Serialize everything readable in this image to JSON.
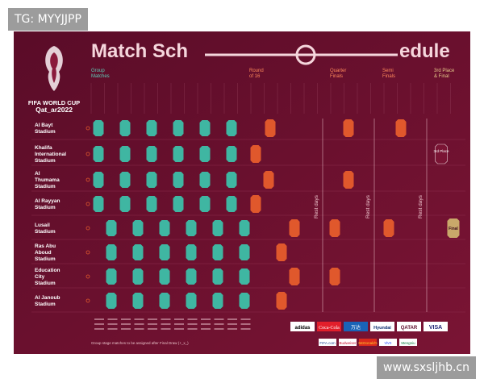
{
  "watermark_top": "TG: MYYJJPP",
  "watermark_bottom": "www.sxsljhb.cn",
  "logo": {
    "line1": "FIFA WORLD CUP",
    "line2": "Qat_ar2022"
  },
  "title_left": "Match Sch",
  "title_right": "edule",
  "stages": {
    "group": "Group Matches",
    "r16": "Round of 16",
    "qf": "Quarter Finals",
    "sf": "Semi Finals",
    "final": "3rd Place & Final"
  },
  "stadiums": [
    "Al Bayt Stadium",
    "Khalifa International Stadium",
    "Al Thumama Stadium",
    "Al Rayyan Stadium",
    "Lusail Stadium",
    "Ras Abu Aboud Stadium",
    "Education City Stadium",
    "Al Janoub Stadium"
  ],
  "rest_days": "Rest days",
  "third_place": "3rd Place",
  "final": "Final",
  "footnote": "Group stage matches to be assigned after Final Draw (+_x_)",
  "sponsors": [
    "adidas",
    "Coca-Cola",
    "万达",
    "Hyundai",
    "QATAR",
    "VISA"
  ],
  "sponsors_row2": [
    "FIFA.com",
    "Budweiser",
    "McDonald's",
    "vivo",
    "Mengniu"
  ],
  "colors": {
    "bg": "#6a0f2e",
    "group": "#3fb6a2",
    "knockout": "#e0582c",
    "final": "#c9a86a"
  }
}
